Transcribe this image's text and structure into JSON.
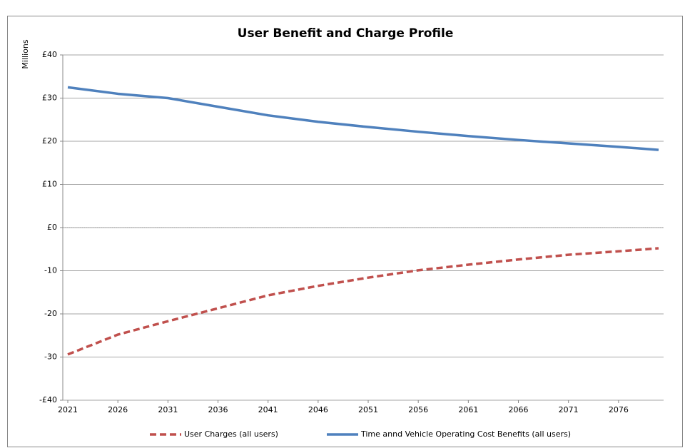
{
  "chart_data": {
    "type": "line",
    "title": "User Benefit and Charge Profile",
    "y_label": "Millions",
    "x": [
      2021,
      2026,
      2031,
      2036,
      2041,
      2046,
      2051,
      2056,
      2061,
      2066,
      2071,
      2076,
      2080
    ],
    "xlim": [
      2020.5,
      2080.5
    ],
    "xticks": [
      2021,
      2026,
      2031,
      2036,
      2041,
      2046,
      2051,
      2056,
      2061,
      2066,
      2071,
      2076
    ],
    "ylim": [
      -40,
      40
    ],
    "yticks": [
      {
        "value": 40,
        "label": "£40"
      },
      {
        "value": 30,
        "label": "£30"
      },
      {
        "value": 20,
        "label": "£20"
      },
      {
        "value": 10,
        "label": "£10"
      },
      {
        "value": 0,
        "label": "£0"
      },
      -10,
      -20,
      -30,
      {
        "value": -40,
        "label": "-£40"
      }
    ],
    "grid": true,
    "legend": "bottom",
    "series": [
      {
        "name": "User Charges (all users)",
        "color": "#c0504d",
        "dash": true,
        "values": [
          -29.4,
          -24.8,
          -21.7,
          -18.7,
          -15.7,
          -13.5,
          -11.6,
          -9.9,
          -8.6,
          -7.4,
          -6.3,
          -5.5,
          -4.8
        ]
      },
      {
        "name": "Time annd Vehicle Operating Cost Benefits (all users)",
        "color": "#4f81bd",
        "dash": false,
        "values": [
          32.5,
          31.0,
          30.0,
          28.0,
          26.0,
          24.5,
          23.3,
          22.2,
          21.2,
          20.3,
          19.5,
          18.7,
          18.0
        ]
      }
    ]
  }
}
